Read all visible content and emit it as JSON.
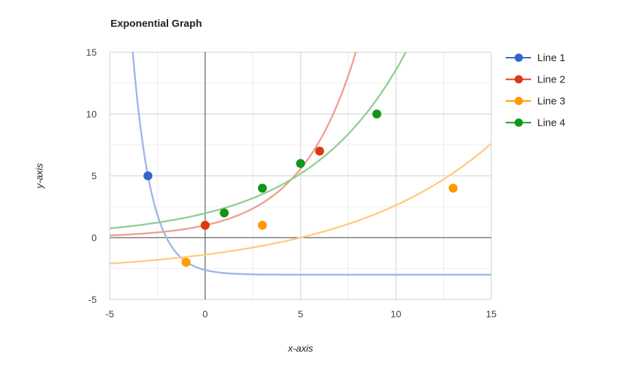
{
  "chart_data": {
    "type": "scatter",
    "title": "Exponential Graph",
    "xlabel": "x-axis",
    "ylabel": "y-axis",
    "xlim": [
      -5,
      15
    ],
    "ylim": [
      -5,
      15
    ],
    "x_ticks": [
      -5,
      0,
      5,
      10,
      15
    ],
    "y_ticks": [
      -5,
      0,
      5,
      10,
      15
    ],
    "grid": true,
    "minor_grid": true,
    "legend_position": "right",
    "series": [
      {
        "name": "Line 1",
        "color": "#3366cc",
        "trend_color": "#9db5e8",
        "points": [
          [
            -3,
            5
          ]
        ],
        "trendline": {
          "model": "a*exp(-b*x)+c",
          "a": 0.383,
          "b": 1.014,
          "c": -3
        }
      },
      {
        "name": "Line 2",
        "color": "#dc3912",
        "trend_color": "#ee9f8e",
        "points": [
          [
            0,
            1
          ],
          [
            6,
            7
          ]
        ],
        "trendline": {
          "model": "a*exp(b*x)+c",
          "a": 1.0,
          "b": 0.343,
          "c": 0
        }
      },
      {
        "name": "Line 3",
        "color": "#ff9900",
        "trend_color": "#ffcc80",
        "points": [
          [
            -1,
            -2
          ],
          [
            3,
            1
          ],
          [
            13,
            4
          ]
        ],
        "trendline": {
          "model": "a*exp(b*x)+c",
          "a": 1.523,
          "b": 0.1288,
          "c": -2.9
        }
      },
      {
        "name": "Line 4",
        "color": "#109618",
        "trend_color": "#8fcf93",
        "points": [
          [
            1,
            2
          ],
          [
            3,
            4
          ],
          [
            5,
            6
          ],
          [
            9,
            10
          ]
        ],
        "trendline": {
          "model": "a*exp(b*x)+c",
          "a": 1.97,
          "b": 0.193,
          "c": 0
        }
      }
    ]
  }
}
